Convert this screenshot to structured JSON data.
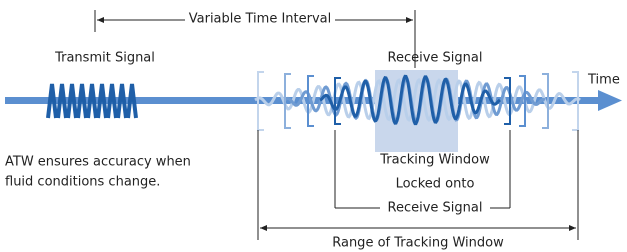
{
  "labels": {
    "interval": "Variable Time Interval",
    "transmit": "Transmit Signal",
    "receive": "Receive Signal",
    "time": "Time",
    "note": [
      "ATW ensures accuracy when",
      "fluid conditions change."
    ],
    "window": [
      "Tracking Window",
      "Locked onto",
      "Receive Signal"
    ],
    "range": "Range of Tracking Window"
  }
}
